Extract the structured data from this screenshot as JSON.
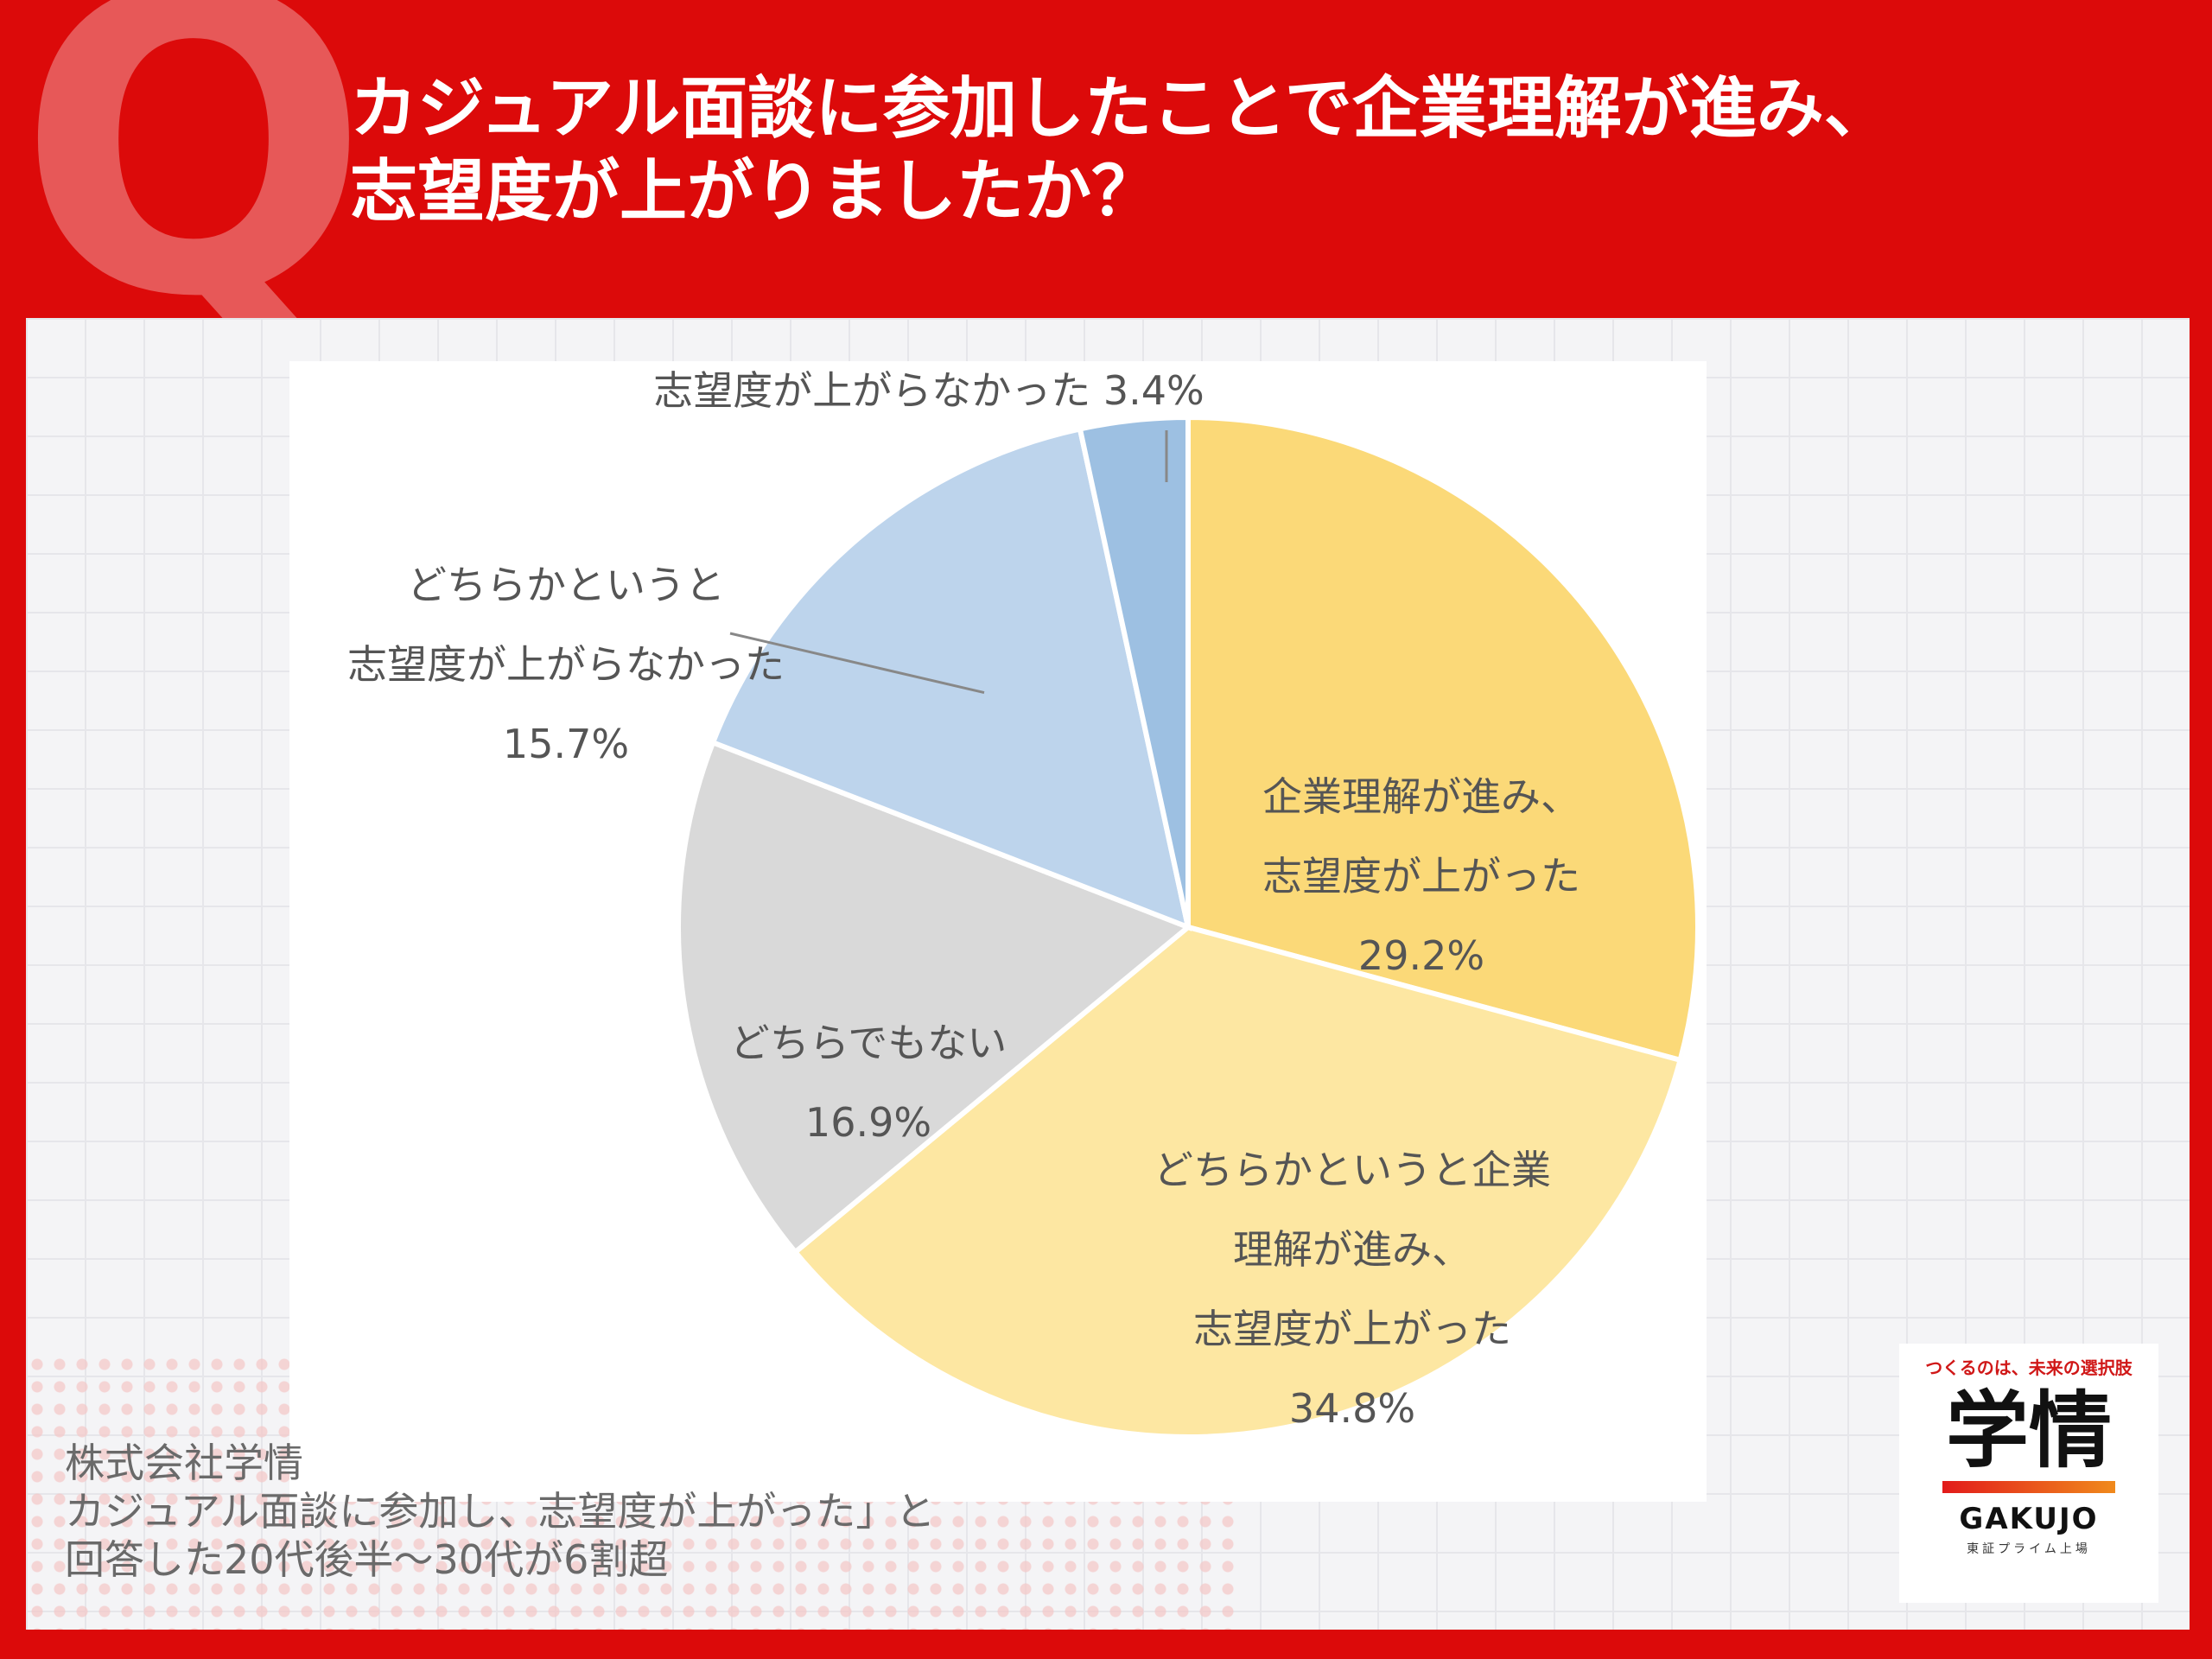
{
  "header": {
    "q_letter": "Q",
    "question_line1": "カジュアル面談に参加したことで企業理解が進み、",
    "question_line2": "志望度が上がりましたか？"
  },
  "chart_data": {
    "type": "pie",
    "start_angle_deg": 0,
    "direction": "clockwise",
    "slices": [
      {
        "label_lines": [
          "企業理解が進み、",
          "志望度が上がった"
        ],
        "value": 29.2,
        "value_text": "29.2%",
        "color": "#fbd978"
      },
      {
        "label_lines": [
          "どちらかというと企業",
          "理解が進み、",
          "志望度が上がった"
        ],
        "value": 34.8,
        "value_text": "34.8%",
        "color": "#fde7a2"
      },
      {
        "label_lines": [
          "どちらでもない"
        ],
        "value": 16.9,
        "value_text": "16.9%",
        "color": "#d9d9d9"
      },
      {
        "label_lines": [
          "どちらかというと",
          "志望度が上がらなかった"
        ],
        "value": 15.7,
        "value_text": "15.7%",
        "color": "#bdd4ec"
      },
      {
        "label_lines": [
          "志望度が上がらなかった"
        ],
        "value": 3.4,
        "value_text": "3.4%",
        "color": "#9dc0e2"
      }
    ]
  },
  "footer": {
    "line1": "株式会社学情",
    "line2": "カジュアル面談に参加し、志望度が上がった」と",
    "line3": "回答した20代後半〜30代が6割超"
  },
  "logo": {
    "tagline": "つくるのは、未来の選択肢",
    "kanji": "学情",
    "english": "GAKUJO",
    "listing": "東証プライム上場"
  },
  "colors": {
    "background": "#dc0a0a",
    "panel": "#f4f4f6",
    "label_text": "#555555"
  }
}
